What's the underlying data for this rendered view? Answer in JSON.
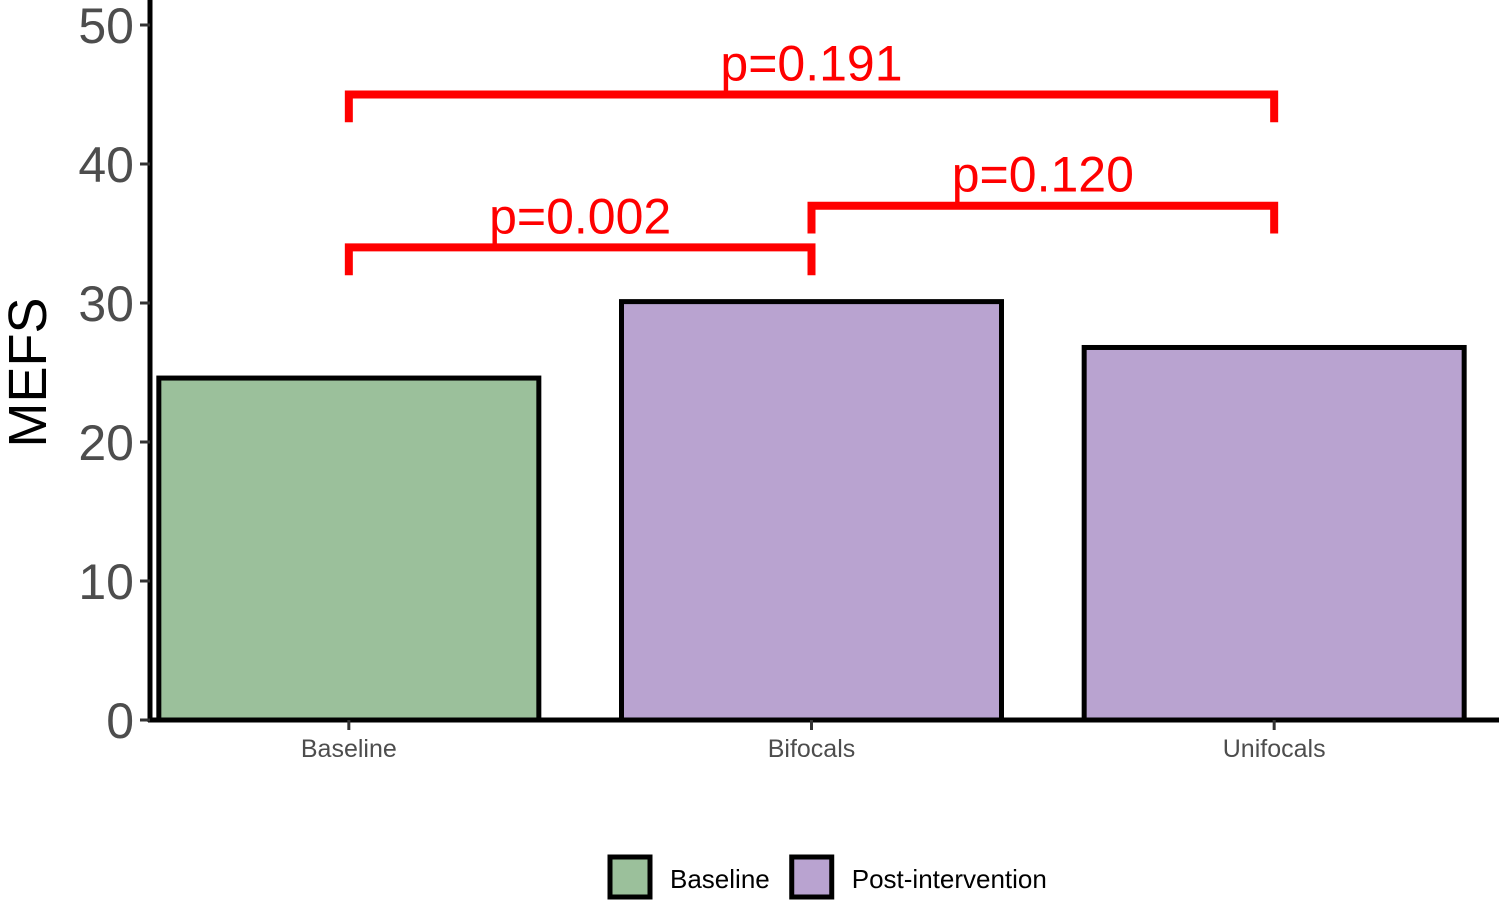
{
  "chart_data": {
    "type": "bar",
    "categories": [
      "Baseline",
      "Bifocals",
      "Unifocals"
    ],
    "values": [
      24.6,
      30.1,
      26.8
    ],
    "groups": [
      "Baseline",
      "Post-intervention",
      "Post-intervention"
    ],
    "ylabel": "MEFS",
    "xlabel": "",
    "ylim": [
      0,
      50
    ],
    "yticks": [
      0,
      10,
      20,
      30,
      40,
      50
    ],
    "grid": false,
    "legend": {
      "position": "bottom",
      "entries": [
        {
          "name": "Baseline",
          "color": "#9bc09b"
        },
        {
          "name": "Post-intervention",
          "color": "#b9a3d0"
        }
      ]
    },
    "annotations": [
      {
        "label": "p=0.002",
        "from": "Baseline",
        "to": "Bifocals",
        "y": 34,
        "tip_y": 32
      },
      {
        "label": "p=0.120",
        "from": "Bifocals",
        "to": "Unifocals",
        "y": 37,
        "tip_y": 35
      },
      {
        "label": "p=0.191",
        "from": "Baseline",
        "to": "Unifocals",
        "y": 45,
        "tip_y": 43
      }
    ],
    "annotation_color": "#ff0000"
  }
}
